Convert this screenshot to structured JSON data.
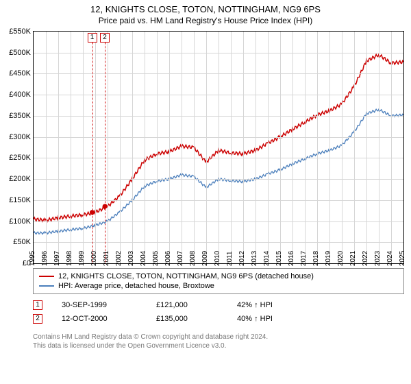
{
  "titles": {
    "main": "12, KNIGHTS CLOSE, TOTON, NOTTINGHAM, NG9 6PS",
    "sub": "Price paid vs. HM Land Registry's House Price Index (HPI)"
  },
  "chart": {
    "type": "line",
    "background_color": "#ffffff",
    "grid_color": "#d6d6d6",
    "border_color": "#000000",
    "axis_font_size": 11,
    "ylim": [
      0,
      550
    ],
    "ytick_step": 50,
    "ytick_prefix": "£",
    "ytick_suffix": "K",
    "xlim": [
      1995,
      2025
    ],
    "xtick_step": 1,
    "series": [
      {
        "name": "12, KNIGHTS CLOSE, TOTON, NOTTINGHAM, NG9 6PS (detached house)",
        "color": "#cc0000",
        "width": 1.5,
        "points": [
          [
            1995,
            105
          ],
          [
            1996,
            102
          ],
          [
            1997,
            108
          ],
          [
            1998,
            112
          ],
          [
            1999,
            115
          ],
          [
            2000,
            121
          ],
          [
            2001,
            135
          ],
          [
            2002,
            160
          ],
          [
            2003,
            200
          ],
          [
            2004,
            245
          ],
          [
            2005,
            260
          ],
          [
            2006,
            265
          ],
          [
            2007,
            278
          ],
          [
            2008,
            275
          ],
          [
            2009,
            240
          ],
          [
            2010,
            268
          ],
          [
            2011,
            262
          ],
          [
            2012,
            260
          ],
          [
            2013,
            268
          ],
          [
            2014,
            285
          ],
          [
            2015,
            300
          ],
          [
            2016,
            318
          ],
          [
            2017,
            335
          ],
          [
            2018,
            352
          ],
          [
            2019,
            362
          ],
          [
            2020,
            378
          ],
          [
            2021,
            420
          ],
          [
            2022,
            480
          ],
          [
            2023,
            495
          ],
          [
            2024,
            475
          ],
          [
            2025,
            478
          ]
        ]
      },
      {
        "name": "HPI: Average price, detached house, Broxtowe",
        "color": "#4a7ebb",
        "width": 1.3,
        "points": [
          [
            1995,
            72
          ],
          [
            1996,
            72
          ],
          [
            1997,
            76
          ],
          [
            1998,
            80
          ],
          [
            1999,
            83
          ],
          [
            2000,
            90
          ],
          [
            2001,
            100
          ],
          [
            2002,
            122
          ],
          [
            2003,
            150
          ],
          [
            2004,
            183
          ],
          [
            2005,
            195
          ],
          [
            2006,
            200
          ],
          [
            2007,
            210
          ],
          [
            2008,
            206
          ],
          [
            2009,
            180
          ],
          [
            2010,
            200
          ],
          [
            2011,
            196
          ],
          [
            2012,
            194
          ],
          [
            2013,
            200
          ],
          [
            2014,
            212
          ],
          [
            2015,
            222
          ],
          [
            2016,
            236
          ],
          [
            2017,
            248
          ],
          [
            2018,
            260
          ],
          [
            2019,
            268
          ],
          [
            2020,
            280
          ],
          [
            2021,
            312
          ],
          [
            2022,
            355
          ],
          [
            2023,
            365
          ],
          [
            2024,
            350
          ],
          [
            2025,
            352
          ]
        ]
      }
    ],
    "sale_markers": [
      {
        "label": "1",
        "x": 1999.75,
        "y": 121,
        "color": "#cc0000"
      },
      {
        "label": "2",
        "x": 2000.78,
        "y": 135,
        "color": "#cc0000"
      }
    ]
  },
  "legend": {
    "border_color": "#888888",
    "font_size": 11,
    "items": [
      {
        "color": "#cc0000",
        "label": "12, KNIGHTS CLOSE, TOTON, NOTTINGHAM, NG9 6PS (detached house)"
      },
      {
        "color": "#4a7ebb",
        "label": "HPI: Average price, detached house, Broxtowe"
      }
    ]
  },
  "sales": [
    {
      "flag": "1",
      "date": "30-SEP-1999",
      "price": "£121,000",
      "delta": "42% ↑ HPI"
    },
    {
      "flag": "2",
      "date": "12-OCT-2000",
      "price": "£135,000",
      "delta": "40% ↑ HPI"
    }
  ],
  "footer": {
    "line1": "Contains HM Land Registry data © Crown copyright and database right 2024.",
    "line2": "This data is licensed under the Open Government Licence v3.0."
  }
}
